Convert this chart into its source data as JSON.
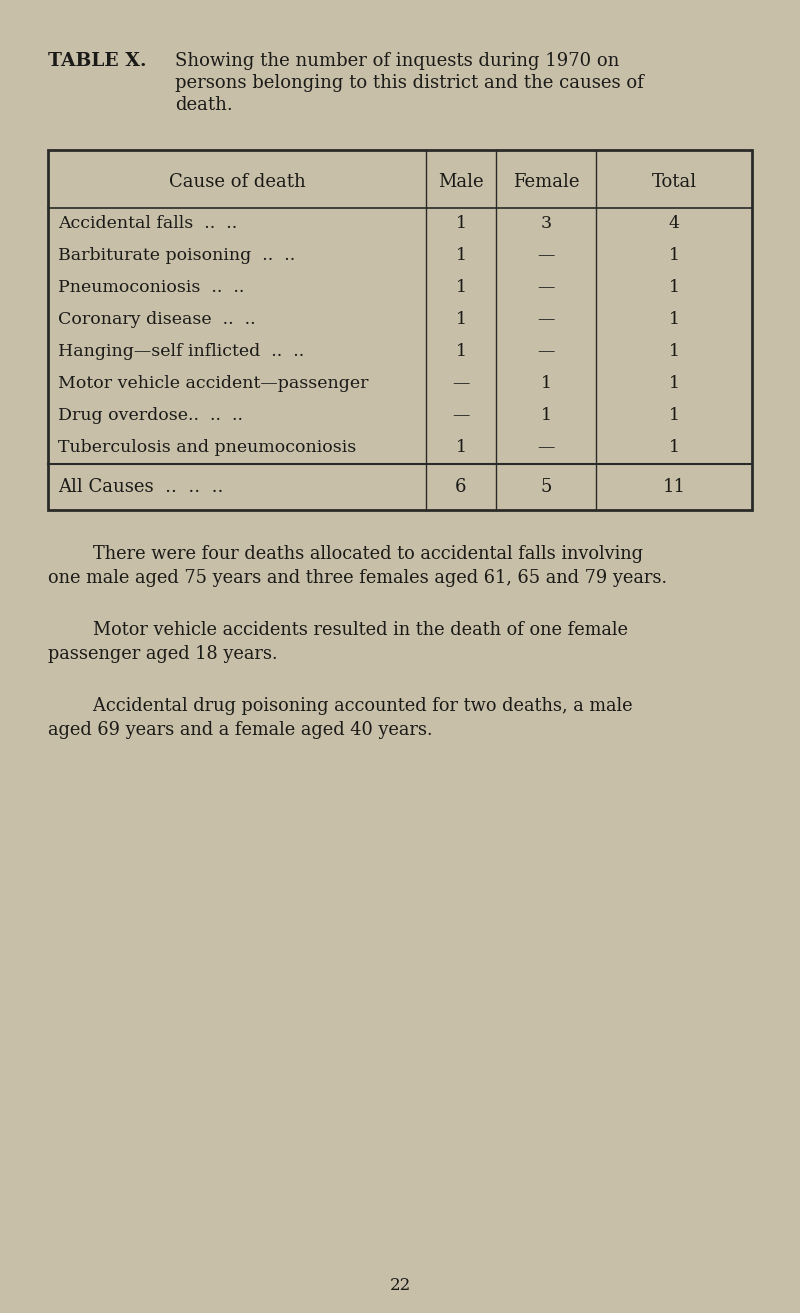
{
  "bg_color": "#c8bfa8",
  "title_bold": "TABLE X.",
  "title_text_line1": "Showing the number of inquests during 1970 on",
  "title_text_line2": "persons belonging to this district and the causes of",
  "title_text_line3": "death.",
  "table_header": [
    "Cause of death",
    "Male",
    "Female",
    "Total"
  ],
  "table_rows": [
    [
      "Accidental falls  ..  ..",
      "1",
      "3",
      "4"
    ],
    [
      "Barbiturate poisoning  ..  ..",
      "1",
      "—",
      "1"
    ],
    [
      "Pneumoconiosis  ..  ..",
      "1",
      "—",
      "1"
    ],
    [
      "Coronary disease  ..  ..",
      "1",
      "—",
      "1"
    ],
    [
      "Hanging—self inflicted  ..  ..",
      "1",
      "—",
      "1"
    ],
    [
      "Motor vehicle accident—passenger",
      "—",
      "1",
      "1"
    ],
    [
      "Drug overdose..  ..  ..",
      "—",
      "1",
      "1"
    ],
    [
      "Tuberculosis and pneumoconiosis",
      "1",
      "—",
      "1"
    ]
  ],
  "table_footer": [
    "All Causes  ..  ..  ..",
    "6",
    "5",
    "11"
  ],
  "para1_line1": "        There were four deaths allocated to accidental falls involving",
  "para1_line2": "one male aged 75 years and three females aged 61, 65 and 79 years.",
  "para2_line1": "        Motor vehicle accidents resulted in the death of one female",
  "para2_line2": "passenger aged 18 years.",
  "para3_line1": "        Accidental drug poisoning accounted for two deaths, a male",
  "para3_line2": "aged 69 years and a female aged 40 years.",
  "page_number": "22",
  "text_color": "#1a1a18",
  "line_color": "#2a2a28"
}
